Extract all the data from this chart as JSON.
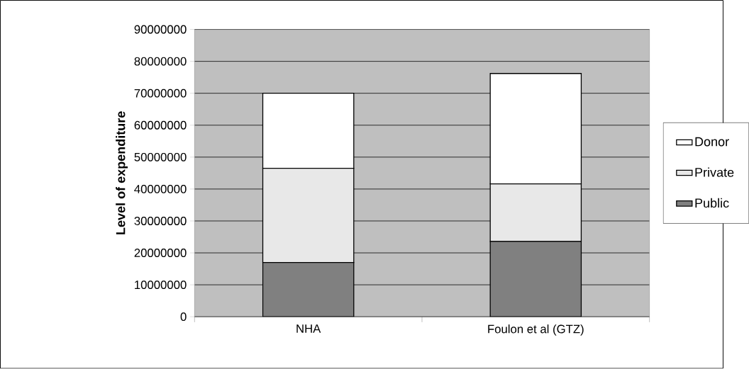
{
  "chart_data": {
    "type": "bar",
    "stacked": true,
    "ylabel": "Level of expenditure",
    "categories": [
      "NHA",
      "Foulon et al (GTZ)"
    ],
    "series": [
      {
        "name": "Public",
        "color": "#808080",
        "values": [
          17000000,
          23600000
        ]
      },
      {
        "name": "Private",
        "color": "#e8e8e8",
        "values": [
          29500000,
          18000000
        ]
      },
      {
        "name": "Donor",
        "color": "#ffffff",
        "values": [
          23500000,
          34600000
        ]
      }
    ],
    "ylim": [
      0,
      90000000
    ],
    "yticks": [
      0,
      10000000,
      20000000,
      30000000,
      40000000,
      50000000,
      60000000,
      70000000,
      80000000,
      90000000
    ],
    "grid": "y",
    "legend": "right"
  }
}
